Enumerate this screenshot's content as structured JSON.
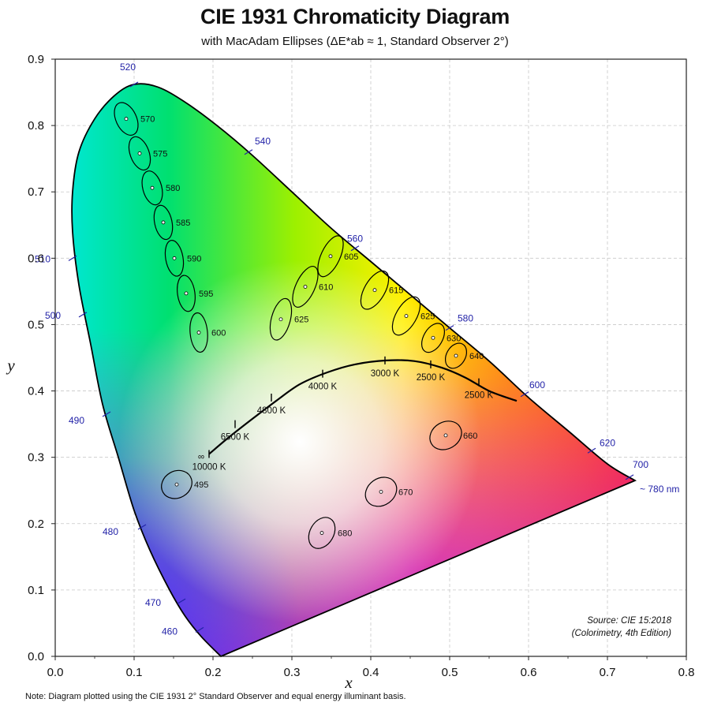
{
  "title": "CIE 1931 Chromaticity Diagram",
  "subtitle": "with MacAdam Ellipses (ΔE*ab ≈ 1, Standard Observer 2°)",
  "footnote": "Note: Diagram plotted using the CIE 1931 2° Standard Observer and equal energy illuminant basis.",
  "source_lines": [
    "Source: CIE 15:2018",
    "(Colorimetry, 4th Edition)"
  ],
  "chart_data": {
    "type": "scatter",
    "title": "CIE 1931 Chromaticity Diagram",
    "subtitle": "with MacAdam Ellipses (ΔE*ab ≈ 1, Standard Observer 2°)",
    "xlabel": "x",
    "ylabel": "y",
    "xlim": [
      0.0,
      0.8
    ],
    "ylim": [
      0.0,
      0.9
    ],
    "xticks": [
      "0.0",
      "0.1",
      "0.2",
      "0.3",
      "0.4",
      "0.5",
      "0.6",
      "0.7",
      "0.8"
    ],
    "yticks": [
      "0.0",
      "0.1",
      "0.2",
      "0.3",
      "0.4",
      "0.5",
      "0.6",
      "0.7",
      "0.8",
      "0.9"
    ],
    "grid": true,
    "spectral_locus": [
      [
        0.21,
        0.0
      ],
      [
        0.185,
        0.03
      ],
      [
        0.165,
        0.06
      ],
      [
        0.145,
        0.1
      ],
      [
        0.12,
        0.16
      ],
      [
        0.1,
        0.22
      ],
      [
        0.08,
        0.3
      ],
      [
        0.06,
        0.38
      ],
      [
        0.045,
        0.47
      ],
      [
        0.03,
        0.56
      ],
      [
        0.022,
        0.64
      ],
      [
        0.022,
        0.7
      ],
      [
        0.03,
        0.76
      ],
      [
        0.05,
        0.81
      ],
      [
        0.075,
        0.845
      ],
      [
        0.1,
        0.862
      ],
      [
        0.13,
        0.858
      ],
      [
        0.165,
        0.835
      ],
      [
        0.205,
        0.8
      ],
      [
        0.25,
        0.755
      ],
      [
        0.3,
        0.7
      ],
      [
        0.35,
        0.645
      ],
      [
        0.4,
        0.595
      ],
      [
        0.45,
        0.545
      ],
      [
        0.5,
        0.495
      ],
      [
        0.55,
        0.445
      ],
      [
        0.6,
        0.39
      ],
      [
        0.65,
        0.34
      ],
      [
        0.7,
        0.29
      ],
      [
        0.735,
        0.265
      ]
    ],
    "wavelength_labels": [
      {
        "label": "460",
        "x": 0.183,
        "y": 0.04
      },
      {
        "label": "470",
        "x": 0.16,
        "y": 0.083
      },
      {
        "label": "480",
        "x": 0.11,
        "y": 0.195
      },
      {
        "label": "490",
        "x": 0.065,
        "y": 0.365
      },
      {
        "label": "500",
        "x": 0.035,
        "y": 0.515
      },
      {
        "label": "510",
        "x": 0.022,
        "y": 0.6
      },
      {
        "label": "520",
        "x": 0.1,
        "y": 0.862
      },
      {
        "label": "540",
        "x": 0.245,
        "y": 0.76
      },
      {
        "label": "560",
        "x": 0.38,
        "y": 0.615
      },
      {
        "label": "580",
        "x": 0.5,
        "y": 0.495
      },
      {
        "label": "600",
        "x": 0.595,
        "y": 0.395
      },
      {
        "label": "620",
        "x": 0.68,
        "y": 0.31
      },
      {
        "label": "700",
        "x": 0.728,
        "y": 0.27
      },
      {
        "label": "~ 780 nm",
        "x": 0.735,
        "y": 0.265
      }
    ],
    "macadam_ellipses": [
      {
        "label": "570",
        "x": 0.09,
        "y": 0.81,
        "a": 0.013,
        "b": 0.022,
        "angle": -25
      },
      {
        "label": "575",
        "x": 0.107,
        "y": 0.758,
        "a": 0.012,
        "b": 0.022,
        "angle": -20
      },
      {
        "label": "580",
        "x": 0.123,
        "y": 0.706,
        "a": 0.012,
        "b": 0.022,
        "angle": -15
      },
      {
        "label": "585",
        "x": 0.137,
        "y": 0.654,
        "a": 0.011,
        "b": 0.022,
        "angle": -12
      },
      {
        "label": "590",
        "x": 0.151,
        "y": 0.6,
        "a": 0.011,
        "b": 0.023,
        "angle": -10
      },
      {
        "label": "595",
        "x": 0.166,
        "y": 0.547,
        "a": 0.011,
        "b": 0.023,
        "angle": -8
      },
      {
        "label": "600",
        "x": 0.182,
        "y": 0.488,
        "a": 0.011,
        "b": 0.025,
        "angle": -5
      },
      {
        "label": "625",
        "x": 0.286,
        "y": 0.508,
        "a": 0.012,
        "b": 0.027,
        "angle": 15
      },
      {
        "label": "610",
        "x": 0.317,
        "y": 0.557,
        "a": 0.012,
        "b": 0.028,
        "angle": 25
      },
      {
        "label": "605",
        "x": 0.349,
        "y": 0.603,
        "a": 0.012,
        "b": 0.028,
        "angle": 25
      },
      {
        "label": "615",
        "x": 0.405,
        "y": 0.552,
        "a": 0.013,
        "b": 0.027,
        "angle": 30
      },
      {
        "label": "625",
        "x": 0.445,
        "y": 0.513,
        "a": 0.013,
        "b": 0.027,
        "angle": 30
      },
      {
        "label": "630",
        "x": 0.479,
        "y": 0.48,
        "a": 0.012,
        "b": 0.02,
        "angle": 30
      },
      {
        "label": "640",
        "x": 0.508,
        "y": 0.453,
        "a": 0.012,
        "b": 0.017,
        "angle": 30
      },
      {
        "label": "660",
        "x": 0.495,
        "y": 0.333,
        "a": 0.017,
        "b": 0.021,
        "angle": 60
      },
      {
        "label": "495",
        "x": 0.154,
        "y": 0.259,
        "a": 0.017,
        "b": 0.02,
        "angle": 60
      },
      {
        "label": "670",
        "x": 0.413,
        "y": 0.248,
        "a": 0.017,
        "b": 0.021,
        "angle": 55
      },
      {
        "label": "680",
        "x": 0.338,
        "y": 0.186,
        "a": 0.015,
        "b": 0.021,
        "angle": 30
      }
    ],
    "planckian_locus": [
      [
        0.195,
        0.305
      ],
      [
        0.22,
        0.33
      ],
      [
        0.25,
        0.358
      ],
      [
        0.28,
        0.385
      ],
      [
        0.31,
        0.41
      ],
      [
        0.345,
        0.428
      ],
      [
        0.38,
        0.44
      ],
      [
        0.42,
        0.446
      ],
      [
        0.455,
        0.445
      ],
      [
        0.49,
        0.435
      ],
      [
        0.52,
        0.42
      ],
      [
        0.55,
        0.4
      ],
      [
        0.585,
        0.385
      ]
    ],
    "cct_points": [
      {
        "label": "10000 K",
        "x": 0.195,
        "y": 0.305
      },
      {
        "label": "6500 K",
        "x": 0.228,
        "y": 0.35
      },
      {
        "label": "4800 K",
        "x": 0.274,
        "y": 0.39
      },
      {
        "label": "4000 K",
        "x": 0.339,
        "y": 0.426
      },
      {
        "label": "3000 K",
        "x": 0.418,
        "y": 0.446
      },
      {
        "label": "2500 K",
        "x": 0.476,
        "y": 0.44
      },
      {
        "label": "2500 K",
        "x": 0.537,
        "y": 0.413
      }
    ],
    "infinity_symbol": "∞"
  }
}
